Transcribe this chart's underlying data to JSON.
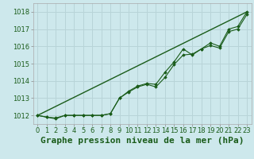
{
  "title": "Graphe pression niveau de la mer (hPa)",
  "bg_color": "#cde8ec",
  "grid_color": "#b8d4d8",
  "line_color": "#1a5c1a",
  "marker_color": "#1a5c1a",
  "xlim": [
    -0.5,
    23.5
  ],
  "ylim": [
    1011.5,
    1018.5
  ],
  "yticks": [
    1012,
    1013,
    1014,
    1015,
    1016,
    1017,
    1018
  ],
  "xticks": [
    0,
    1,
    2,
    3,
    4,
    5,
    6,
    7,
    8,
    9,
    10,
    11,
    12,
    13,
    14,
    15,
    16,
    17,
    18,
    19,
    20,
    21,
    22,
    23
  ],
  "series1_x": [
    0,
    1,
    2,
    3,
    4,
    5,
    6,
    7,
    8,
    9,
    10,
    11,
    12,
    13,
    14,
    15,
    16,
    17,
    18,
    19,
    20,
    21,
    22,
    23
  ],
  "series1_y": [
    1012.0,
    1011.9,
    1011.85,
    1012.0,
    1012.0,
    1012.0,
    1012.0,
    1012.0,
    1012.1,
    1013.0,
    1013.4,
    1013.7,
    1013.85,
    1013.8,
    1014.5,
    1015.1,
    1015.85,
    1015.5,
    1015.85,
    1016.2,
    1016.0,
    1017.0,
    1017.15,
    1018.0
  ],
  "series2_x": [
    0,
    1,
    2,
    3,
    4,
    5,
    6,
    7,
    8,
    9,
    10,
    11,
    12,
    13,
    14,
    15,
    16,
    17,
    18,
    19,
    20,
    21,
    22,
    23
  ],
  "series2_y": [
    1012.0,
    1011.9,
    1011.8,
    1012.0,
    1012.0,
    1012.0,
    1012.0,
    1012.0,
    1012.1,
    1013.0,
    1013.35,
    1013.65,
    1013.8,
    1013.65,
    1014.2,
    1014.95,
    1015.5,
    1015.55,
    1015.85,
    1016.05,
    1015.9,
    1016.85,
    1017.0,
    1017.85
  ],
  "trend_x": [
    0,
    23
  ],
  "trend_y": [
    1012.0,
    1018.0
  ],
  "title_fontsize": 8,
  "tick_fontsize": 6
}
